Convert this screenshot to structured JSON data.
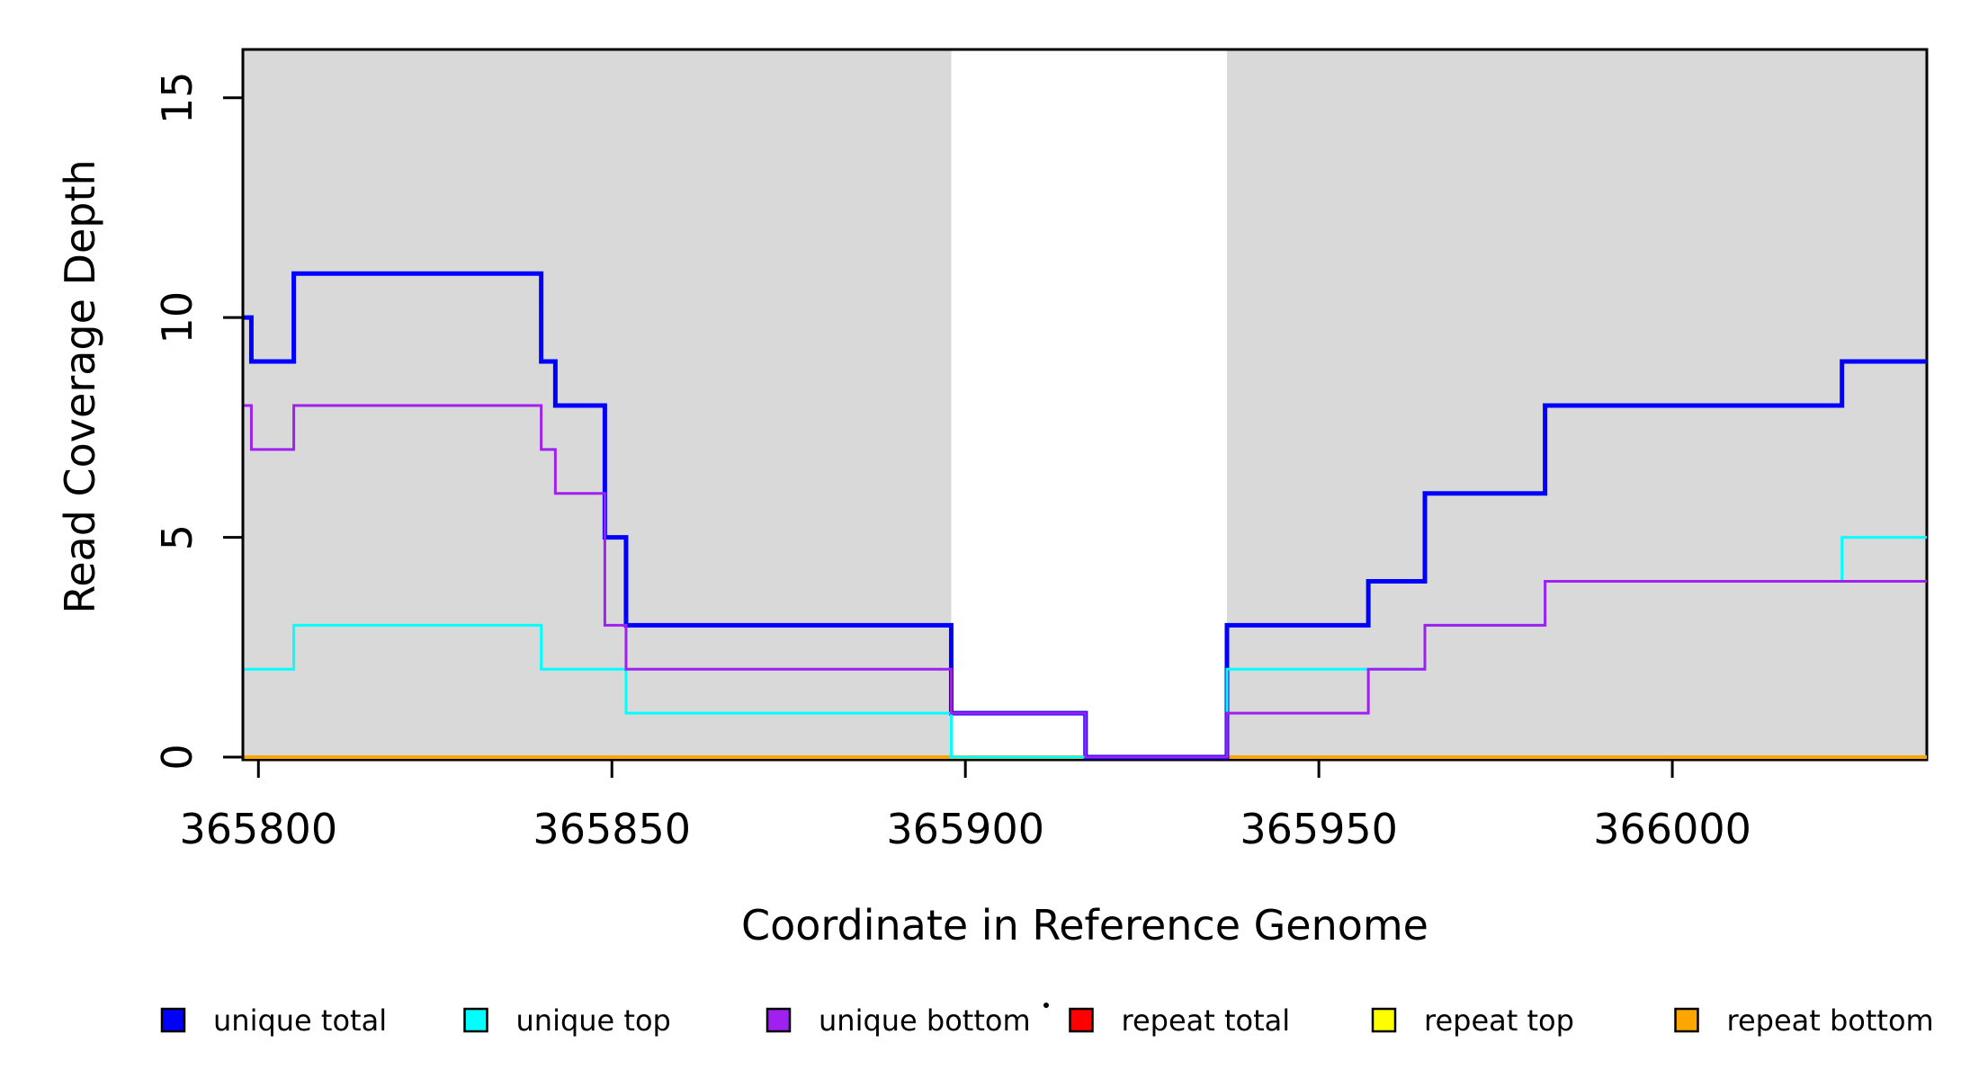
{
  "figure": {
    "background": "#FFFFFF",
    "plot_border_color": "#000000",
    "shading_color": "#D9D9D9"
  },
  "chart_data": {
    "type": "line",
    "subtype": "step",
    "title": "",
    "xlabel": "Coordinate in Reference Genome",
    "ylabel": "Read Coverage Depth",
    "xlim": [
      365797.8,
      366036
    ],
    "ylim": [
      0,
      16.1
    ],
    "grid": "off",
    "x_ticks": [
      365800,
      365850,
      365900,
      365950,
      366000
    ],
    "x_tick_labels": [
      "365800",
      "365850",
      "365900",
      "365950",
      "366000"
    ],
    "y_ticks": [
      0,
      5,
      10,
      15
    ],
    "y_tick_labels": [
      "0",
      "5",
      "10",
      "15"
    ],
    "shaded_regions": [
      {
        "name": "left-shaded-region",
        "from": 365797.8,
        "to": 365898
      },
      {
        "name": "right-shaded-region",
        "from": 365937,
        "to": 366036
      }
    ],
    "series": [
      {
        "name": "repeat total",
        "color": "#FF0000",
        "width": 3,
        "steps": [
          [
            365797.8,
            0
          ]
        ]
      },
      {
        "name": "repeat top",
        "color": "#FFFF00",
        "width": 3,
        "steps": [
          [
            365797.8,
            0
          ]
        ]
      },
      {
        "name": "repeat bottom",
        "color": "#FFA500",
        "width": 4,
        "steps": [
          [
            365797.8,
            0
          ]
        ]
      },
      {
        "name": "unique total",
        "color": "#0000FF",
        "width": 5,
        "steps": [
          [
            365797.8,
            10
          ],
          [
            365799,
            9
          ],
          [
            365805,
            11
          ],
          [
            365840,
            9
          ],
          [
            365842,
            8
          ],
          [
            365849,
            5
          ],
          [
            365852,
            3
          ],
          [
            365898,
            1
          ],
          [
            365917,
            0
          ],
          [
            365937,
            3
          ],
          [
            365957,
            4
          ],
          [
            365965,
            6
          ],
          [
            365982,
            8
          ],
          [
            366024,
            9
          ]
        ]
      },
      {
        "name": "unique top",
        "color": "#00FFFF",
        "width": 3,
        "steps": [
          [
            365797.8,
            2
          ],
          [
            365805,
            3
          ],
          [
            365840,
            2
          ],
          [
            365852,
            1
          ],
          [
            365898,
            0
          ],
          [
            365937,
            2
          ],
          [
            365965,
            3
          ],
          [
            365982,
            4
          ],
          [
            366024,
            5
          ]
        ]
      },
      {
        "name": "unique bottom",
        "color": "#A020F0",
        "width": 3,
        "steps": [
          [
            365797.8,
            8
          ],
          [
            365799,
            7
          ],
          [
            365805,
            8
          ],
          [
            365840,
            7
          ],
          [
            365842,
            6
          ],
          [
            365849,
            3
          ],
          [
            365852,
            2
          ],
          [
            365898,
            1
          ],
          [
            365917,
            0
          ],
          [
            365937,
            1
          ],
          [
            365957,
            2
          ],
          [
            365965,
            3
          ],
          [
            365982,
            4
          ]
        ]
      }
    ],
    "legend": {
      "position": "bottom",
      "entries": [
        {
          "label": "unique total",
          "color": "#0000FF"
        },
        {
          "label": "unique top",
          "color": "#00FFFF"
        },
        {
          "label": "unique bottom",
          "color": "#A020F0"
        },
        {
          "label": "repeat total",
          "color": "#FF0000"
        },
        {
          "label": "repeat top",
          "color": "#FFFF00"
        },
        {
          "label": "repeat bottom",
          "color": "#FFA500"
        }
      ]
    }
  }
}
